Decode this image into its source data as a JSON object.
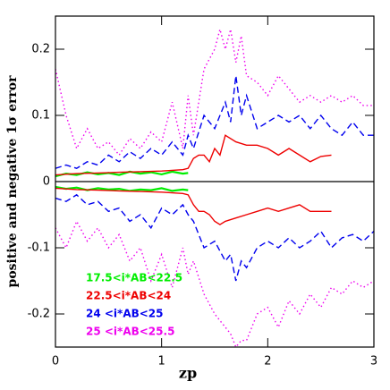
{
  "chart_data": {
    "type": "line",
    "x_label": "zp",
    "y_label": "positive and negative 1σ error",
    "xlim": [
      0,
      3
    ],
    "ylim": [
      -0.25,
      0.25
    ],
    "xticks": [
      0,
      1,
      2,
      3
    ],
    "yticks": [
      -0.2,
      -0.1,
      0,
      0.1,
      0.2
    ],
    "series": [
      {
        "name": "17.5<i*AB<22.5",
        "color": "#00ee00",
        "dash": "solid",
        "x": [
          0,
          0.1,
          0.2,
          0.3,
          0.4,
          0.5,
          0.6,
          0.7,
          0.8,
          0.9,
          1.0,
          1.1,
          1.2,
          1.25
        ],
        "upper": [
          0.008,
          0.012,
          0.01,
          0.014,
          0.011,
          0.013,
          0.01,
          0.015,
          0.012,
          0.014,
          0.011,
          0.015,
          0.012,
          0.013
        ],
        "lower": [
          -0.008,
          -0.011,
          -0.009,
          -0.013,
          -0.01,
          -0.012,
          -0.011,
          -0.014,
          -0.012,
          -0.013,
          -0.01,
          -0.014,
          -0.012,
          -0.013
        ]
      },
      {
        "name": "22.5<i*AB<24",
        "color": "#ee0000",
        "dash": "solid",
        "x": [
          0,
          0.2,
          0.4,
          0.6,
          0.8,
          1.0,
          1.2,
          1.25,
          1.3,
          1.35,
          1.4,
          1.45,
          1.5,
          1.55,
          1.6,
          1.7,
          1.8,
          1.9,
          2.0,
          2.1,
          2.2,
          2.3,
          2.4,
          2.5,
          2.6
        ],
        "upper": [
          0.01,
          0.012,
          0.013,
          0.014,
          0.015,
          0.016,
          0.018,
          0.02,
          0.035,
          0.04,
          0.04,
          0.03,
          0.05,
          0.04,
          0.07,
          0.06,
          0.055,
          0.055,
          0.05,
          0.04,
          0.05,
          0.04,
          0.03,
          0.038,
          0.04
        ],
        "lower": [
          -0.01,
          -0.012,
          -0.013,
          -0.014,
          -0.015,
          -0.016,
          -0.018,
          -0.02,
          -0.035,
          -0.045,
          -0.045,
          -0.05,
          -0.06,
          -0.065,
          -0.06,
          -0.055,
          -0.05,
          -0.045,
          -0.04,
          -0.045,
          -0.04,
          -0.035,
          -0.045,
          -0.045,
          -0.045
        ]
      },
      {
        "name": "24    <i*AB<25",
        "color": "#0000ee",
        "dash": "dashed",
        "x": [
          0,
          0.1,
          0.2,
          0.3,
          0.4,
          0.5,
          0.6,
          0.7,
          0.8,
          0.9,
          1.0,
          1.1,
          1.2,
          1.25,
          1.3,
          1.4,
          1.5,
          1.6,
          1.65,
          1.7,
          1.75,
          1.8,
          1.9,
          2.0,
          2.1,
          2.2,
          2.3,
          2.4,
          2.5,
          2.6,
          2.7,
          2.8,
          2.9,
          3.0
        ],
        "upper": [
          0.02,
          0.025,
          0.02,
          0.03,
          0.025,
          0.04,
          0.03,
          0.045,
          0.035,
          0.05,
          0.04,
          0.06,
          0.04,
          0.07,
          0.05,
          0.1,
          0.08,
          0.12,
          0.09,
          0.16,
          0.1,
          0.13,
          0.08,
          0.09,
          0.1,
          0.09,
          0.1,
          0.08,
          0.1,
          0.08,
          0.07,
          0.09,
          0.07,
          0.07
        ],
        "lower": [
          -0.025,
          -0.03,
          -0.02,
          -0.035,
          -0.03,
          -0.045,
          -0.04,
          -0.06,
          -0.05,
          -0.07,
          -0.04,
          -0.05,
          -0.035,
          -0.05,
          -0.06,
          -0.1,
          -0.09,
          -0.12,
          -0.11,
          -0.15,
          -0.12,
          -0.13,
          -0.1,
          -0.09,
          -0.1,
          -0.085,
          -0.1,
          -0.09,
          -0.075,
          -0.1,
          -0.085,
          -0.08,
          -0.09,
          -0.075
        ]
      },
      {
        "name": "25    <i*AB<25.5",
        "color": "#ee00ee",
        "dash": "dotted",
        "x": [
          0,
          0.1,
          0.2,
          0.3,
          0.4,
          0.5,
          0.6,
          0.7,
          0.8,
          0.9,
          1.0,
          1.1,
          1.2,
          1.25,
          1.3,
          1.4,
          1.5,
          1.55,
          1.6,
          1.65,
          1.7,
          1.75,
          1.8,
          1.9,
          2.0,
          2.1,
          2.2,
          2.3,
          2.4,
          2.5,
          2.6,
          2.7,
          2.8,
          2.9,
          3.0
        ],
        "upper": [
          0.17,
          0.1,
          0.05,
          0.08,
          0.05,
          0.06,
          0.04,
          0.065,
          0.05,
          0.075,
          0.06,
          0.12,
          0.05,
          0.13,
          0.07,
          0.17,
          0.2,
          0.23,
          0.2,
          0.23,
          0.18,
          0.22,
          0.16,
          0.15,
          0.13,
          0.16,
          0.14,
          0.12,
          0.13,
          0.12,
          0.13,
          0.12,
          0.13,
          0.115,
          0.115
        ],
        "lower": [
          -0.07,
          -0.1,
          -0.06,
          -0.09,
          -0.07,
          -0.1,
          -0.08,
          -0.12,
          -0.1,
          -0.15,
          -0.11,
          -0.16,
          -0.1,
          -0.14,
          -0.12,
          -0.17,
          -0.2,
          -0.21,
          -0.22,
          -0.23,
          -0.25,
          -0.24,
          -0.24,
          -0.2,
          -0.19,
          -0.22,
          -0.18,
          -0.2,
          -0.17,
          -0.19,
          -0.16,
          -0.17,
          -0.15,
          -0.16,
          -0.15
        ]
      }
    ]
  }
}
